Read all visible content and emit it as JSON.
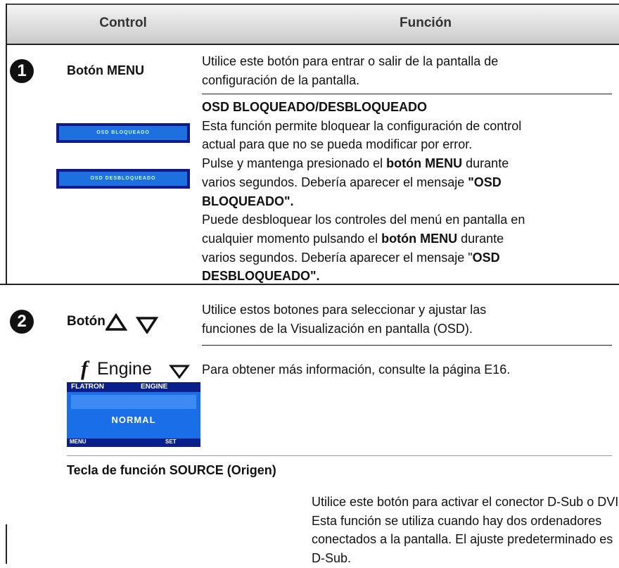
{
  "header": {
    "control": "Control",
    "function": "Función"
  },
  "menu_button": {
    "number": "1",
    "label": "Botón MENU",
    "description": [
      "Utilice este botón para entrar o salir de la pantalla de",
      "configuración de la pantalla."
    ]
  },
  "osd_lock": {
    "title": "OSD BLOQUEADO/DESBLOQUEADO",
    "button_locked": "OSD BLOQUEADO",
    "button_unlocked": "OSD DESBLOQUEADO",
    "lines": [
      "Esta función permite bloquear la configuración de control",
      "actual para que no se pueda modificar por error.",
      "Pulse y mantenga presionado el ",
      "botón MENU",
      " durante",
      "varios segundos. Debería aparecer el mensaje ",
      "\"OSD",
      "BLOQUEADO\".",
      "Puede desbloquear los controles del menú en pantalla en",
      "cualquier momento pulsando el ",
      "botón MENU",
      " durante",
      "varios segundos. Debería aparecer el mensaje \"",
      "OSD",
      "DESBLOQUEADO\"."
    ]
  },
  "arrow_buttons": {
    "number": "2",
    "label": "Botón",
    "description": [
      "Utilice estos botones para seleccionar y ajustar las",
      "funciones de la Visualización en pantalla (OSD)."
    ]
  },
  "fengine": {
    "logo": "f",
    "label": "Engine",
    "description": "Para obtener más información, consulte la página E16.",
    "menu": {
      "brand": "FLATRON",
      "engine": "ENGINE",
      "mode": "NORMAL",
      "menu": "MENU",
      "set": "SET"
    }
  },
  "source": {
    "title": "Tecla de función SOURCE (Origen)",
    "lines": [
      "Utilice este botón para activar el conector D-Sub o DVI.",
      "Esta función se utiliza cuando hay dos ordenadores",
      "conectados a la pantalla. El ajuste predeterminado es",
      "D-Sub."
    ]
  }
}
